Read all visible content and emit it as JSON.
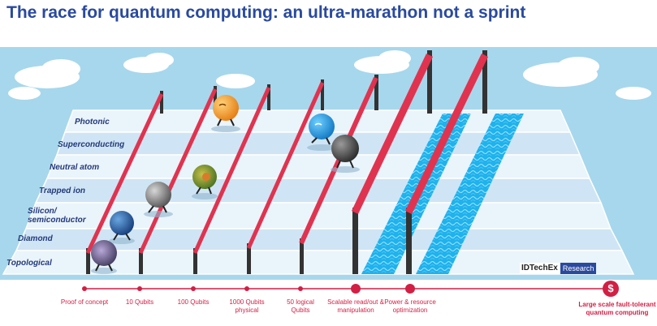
{
  "title": "The race for quantum computing: an ultra-marathon not a sprint",
  "lanes": [
    "Photonic",
    "Superconducting",
    "Neutral atom",
    "Trapped ion",
    "Silicon/ semiconductor",
    "Diamond",
    "Topological"
  ],
  "milestones": [
    "Proof of concept",
    "10 Qubits",
    "100 Qubits",
    "1000 Qubits physical",
    "50 logical Qubits",
    "Scalable read/out & manipulation",
    "Power & resource optimization",
    "Large scale fault-tolerant quantum computing"
  ],
  "final_icon": "$",
  "brand": {
    "name": "IDTechEx",
    "tag": "Research"
  },
  "colors": {
    "title": "#2a4a9e",
    "sky": "#a7d7ec",
    "lane_light": "#e9f3fb",
    "lane_dark": "#cde3f4",
    "hurdle": "#e0334f",
    "post": "#333333",
    "water": "#18a9e6",
    "timeline": "#d21f44"
  }
}
